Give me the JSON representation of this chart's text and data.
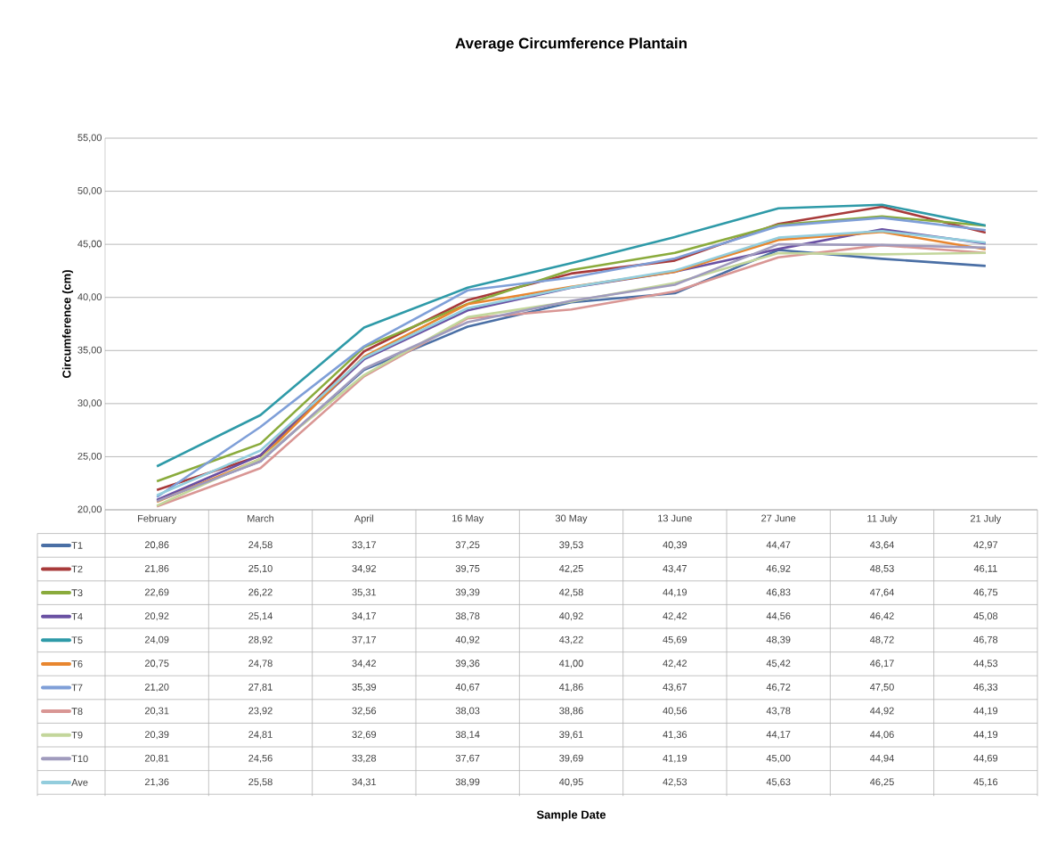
{
  "chart_data": {
    "type": "line",
    "title": "Average Circumference Plantain",
    "annotations": [
      "Sample Date"
    ],
    "ylabel": "Circumference (cm)",
    "categories": [
      "February",
      "March",
      "April",
      "16 May",
      "30 May",
      "13 June",
      "27 June",
      "11 July",
      "21 July"
    ],
    "ylim": [
      20,
      55
    ],
    "yticks": [
      {
        "value": 20,
        "label": "20,00"
      },
      {
        "value": 25,
        "label": "25,00"
      },
      {
        "value": 30,
        "label": "30,00"
      },
      {
        "value": 35,
        "label": "35,00"
      },
      {
        "value": 40,
        "label": "40,00"
      },
      {
        "value": 45,
        "label": "45,00"
      },
      {
        "value": 50,
        "label": "50,00"
      },
      {
        "value": 55,
        "label": "55,00"
      }
    ],
    "grid": "y",
    "legend": "bottom",
    "marker": "none",
    "line_style": "solid",
    "series": [
      {
        "name": "T1",
        "color": "#4a6fa5",
        "values": [
          20.86,
          24.58,
          33.17,
          37.25,
          39.53,
          40.39,
          44.47,
          43.64,
          42.97
        ],
        "value_labels": [
          "20,86",
          "24,58",
          "33,17",
          "37,25",
          "39,53",
          "40,39",
          "44,47",
          "43,64",
          "42,97"
        ]
      },
      {
        "name": "T2",
        "color": "#a83a3a",
        "values": [
          21.86,
          25.1,
          34.92,
          39.75,
          42.25,
          43.47,
          46.92,
          48.53,
          46.11
        ],
        "value_labels": [
          "21,86",
          "25,10",
          "34,92",
          "39,75",
          "42,25",
          "43,47",
          "46,92",
          "48,53",
          "46,11"
        ]
      },
      {
        "name": "T3",
        "color": "#8aab3c",
        "values": [
          22.69,
          26.22,
          35.31,
          39.39,
          42.58,
          44.19,
          46.83,
          47.64,
          46.75
        ],
        "value_labels": [
          "22,69",
          "26,22",
          "35,31",
          "39,39",
          "42,58",
          "44,19",
          "46,83",
          "47,64",
          "46,75"
        ]
      },
      {
        "name": "T4",
        "color": "#6a51a3",
        "values": [
          20.92,
          25.14,
          34.17,
          38.78,
          40.92,
          42.42,
          44.56,
          46.42,
          45.08
        ],
        "value_labels": [
          "20,92",
          "25,14",
          "34,17",
          "38,78",
          "40,92",
          "42,42",
          "44,56",
          "46,42",
          "45,08"
        ]
      },
      {
        "name": "T5",
        "color": "#2e9aa8",
        "values": [
          24.09,
          28.92,
          37.17,
          40.92,
          43.22,
          45.69,
          48.39,
          48.72,
          46.78
        ],
        "value_labels": [
          "24,09",
          "28,92",
          "37,17",
          "40,92",
          "43,22",
          "45,69",
          "48,39",
          "48,72",
          "46,78"
        ]
      },
      {
        "name": "T6",
        "color": "#e8862f",
        "values": [
          20.75,
          24.78,
          34.42,
          39.36,
          41.0,
          42.42,
          45.42,
          46.17,
          44.53
        ],
        "value_labels": [
          "20,75",
          "24,78",
          "34,42",
          "39,36",
          "41,00",
          "42,42",
          "45,42",
          "46,17",
          "44,53"
        ]
      },
      {
        "name": "T7",
        "color": "#7f9fd8",
        "values": [
          21.2,
          27.81,
          35.39,
          40.67,
          41.86,
          43.67,
          46.72,
          47.5,
          46.33
        ],
        "value_labels": [
          "21,20",
          "27,81",
          "35,39",
          "40,67",
          "41,86",
          "43,67",
          "46,72",
          "47,50",
          "46,33"
        ]
      },
      {
        "name": "T8",
        "color": "#d99694",
        "values": [
          20.31,
          23.92,
          32.56,
          38.03,
          38.86,
          40.56,
          43.78,
          44.92,
          44.19
        ],
        "value_labels": [
          "20,31",
          "23,92",
          "32,56",
          "38,03",
          "38,86",
          "40,56",
          "43,78",
          "44,92",
          "44,19"
        ]
      },
      {
        "name": "T9",
        "color": "#c3d69b",
        "values": [
          20.39,
          24.81,
          32.69,
          38.14,
          39.61,
          41.36,
          44.17,
          44.06,
          44.19
        ],
        "value_labels": [
          "20,39",
          "24,81",
          "32,69",
          "38,14",
          "39,61",
          "41,36",
          "44,17",
          "44,06",
          "44,19"
        ]
      },
      {
        "name": "T10",
        "color": "#a09bbd",
        "values": [
          20.81,
          24.56,
          33.28,
          37.67,
          39.69,
          41.19,
          45.0,
          44.94,
          44.69
        ],
        "value_labels": [
          "20,81",
          "24,56",
          "33,28",
          "37,67",
          "39,69",
          "41,19",
          "45,00",
          "44,94",
          "44,69"
        ]
      },
      {
        "name": "Ave",
        "color": "#93cddd",
        "values": [
          21.36,
          25.58,
          34.31,
          38.99,
          40.95,
          42.53,
          45.63,
          46.25,
          45.16
        ],
        "value_labels": [
          "21,36",
          "25,58",
          "34,31",
          "38,99",
          "40,95",
          "42,53",
          "45,63",
          "46,25",
          "45,16"
        ]
      }
    ]
  }
}
